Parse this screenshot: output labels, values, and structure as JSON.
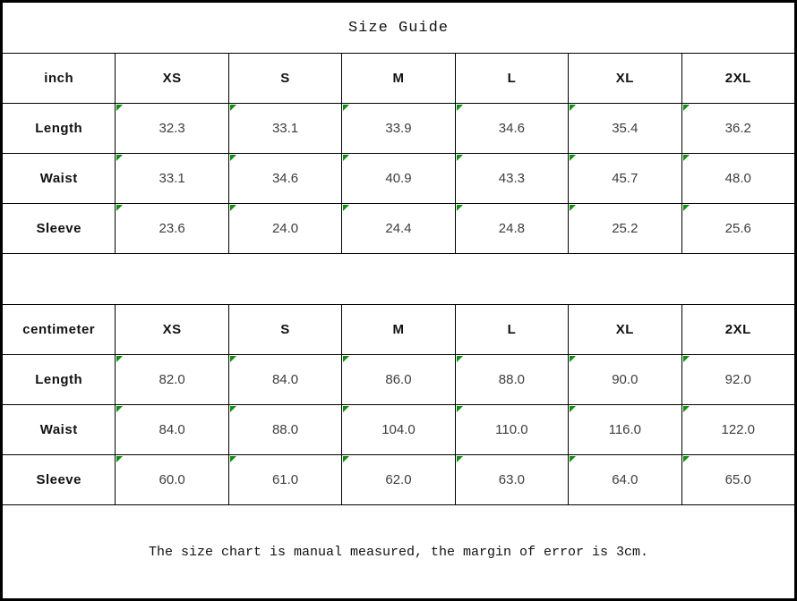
{
  "title": "Size Guide",
  "footer_note": "The size chart is manual measured, the margin of error is 3cm.",
  "colors": {
    "flag_triangle_green": "#0f8f0f",
    "grid_line": "#000000",
    "background": "#ffffff"
  },
  "tables": [
    {
      "unit": "inch",
      "sizes": [
        "XS",
        "S",
        "M",
        "L",
        "XL",
        "2XL"
      ],
      "rows": [
        {
          "label": "Length",
          "values": [
            "32.3",
            "33.1",
            "33.9",
            "34.6",
            "35.4",
            "36.2"
          ]
        },
        {
          "label": "Waist",
          "values": [
            "33.1",
            "34.6",
            "40.9",
            "43.3",
            "45.7",
            "48.0"
          ]
        },
        {
          "label": "Sleeve",
          "values": [
            "23.6",
            "24.0",
            "24.4",
            "24.8",
            "25.2",
            "25.6"
          ]
        }
      ]
    },
    {
      "unit": "centimeter",
      "sizes": [
        "XS",
        "S",
        "M",
        "L",
        "XL",
        "2XL"
      ],
      "rows": [
        {
          "label": "Length",
          "values": [
            "82.0",
            "84.0",
            "86.0",
            "88.0",
            "90.0",
            "92.0"
          ]
        },
        {
          "label": "Waist",
          "values": [
            "84.0",
            "88.0",
            "104.0",
            "110.0",
            "116.0",
            "122.0"
          ]
        },
        {
          "label": "Sleeve",
          "values": [
            "60.0",
            "61.0",
            "62.0",
            "63.0",
            "64.0",
            "65.0"
          ]
        }
      ]
    }
  ]
}
